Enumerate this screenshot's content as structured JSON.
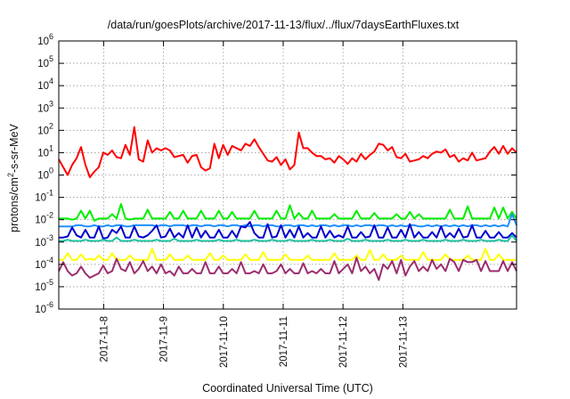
{
  "chart_data": {
    "type": "line",
    "title": "/data/run/goesPlots/archive/2017-11-13/flux/../flux/7daysEarthFluxes.txt",
    "xlabel": "Coordinated Universal Time (UTC)",
    "ylabel": "protons/cm²-s-sr-MeV",
    "yscale": "log",
    "ylim_exp": [
      -6,
      6
    ],
    "y_tick_exponents": [
      -6,
      -5,
      -4,
      -3,
      -2,
      -1,
      0,
      1,
      2,
      3,
      4,
      5,
      6
    ],
    "xlim_days": [
      -0.75,
      6.9
    ],
    "x_tick_labels": [
      "2017-11-8",
      "2017-11-9",
      "2017-11-10",
      "2017-11-11",
      "2017-11-12",
      "2017-11-13"
    ],
    "grid": true,
    "legend": "none",
    "series": [
      {
        "color": "#ff0000",
        "values_log10": [
          0.7,
          0.35,
          0.0,
          0.45,
          0.75,
          1.25,
          0.45,
          -0.1,
          0.15,
          0.35,
          1.0,
          0.9,
          1.1,
          0.8,
          0.75,
          1.35,
          0.9,
          2.15,
          0.7,
          0.6,
          1.55,
          1.0,
          1.2,
          1.1,
          1.2,
          1.1,
          0.8,
          0.85,
          0.9,
          0.55,
          0.85,
          0.9,
          0.35,
          0.2,
          0.3,
          1.4,
          0.75,
          1.35,
          0.9,
          1.3,
          1.2,
          1.1,
          1.4,
          1.3,
          1.6,
          1.25,
          0.95,
          0.65,
          0.6,
          0.8,
          0.45,
          0.7,
          0.25,
          0.45,
          1.9,
          1.2,
          1.2,
          1.0,
          0.85,
          0.85,
          0.7,
          0.75,
          0.55,
          0.85,
          0.7,
          0.5,
          0.75,
          0.6,
          0.95,
          0.7,
          0.9,
          1.05,
          1.4,
          1.35,
          1.1,
          1.25,
          0.8,
          0.75,
          0.95,
          0.6,
          0.65,
          0.7,
          0.85,
          0.75,
          0.95,
          1.05,
          1.0,
          1.15,
          0.8,
          0.9,
          0.6,
          0.75,
          0.65,
          1.0,
          0.65,
          0.7,
          0.75,
          1.05,
          1.25,
          0.95,
          1.3,
          0.95,
          1.2,
          1.0
        ]
      },
      {
        "color": "#00ee00",
        "values_log10": [
          -1.95,
          -1.95,
          -1.95,
          -2.0,
          -1.95,
          -1.6,
          -1.95,
          -1.6,
          -2.05,
          -1.95,
          -1.95,
          -1.95,
          -1.75,
          -1.95,
          -1.3,
          -1.95,
          -2.0,
          -1.95,
          -1.95,
          -1.95,
          -1.55,
          -1.95,
          -1.95,
          -1.95,
          -1.95,
          -1.65,
          -1.95,
          -1.95,
          -1.6,
          -1.95,
          -1.95,
          -1.95,
          -1.6,
          -1.95,
          -1.95,
          -1.95,
          -1.6,
          -1.95,
          -1.95,
          -1.65,
          -1.95,
          -1.95,
          -1.95,
          -1.95,
          -1.6,
          -1.95,
          -1.95,
          -1.95,
          -1.95,
          -1.6,
          -1.95,
          -1.95,
          -1.35,
          -1.95,
          -1.7,
          -1.95,
          -1.95,
          -1.6,
          -1.95,
          -1.95,
          -1.95,
          -1.95,
          -1.75,
          -1.95,
          -1.95,
          -1.95,
          -1.95,
          -1.6,
          -1.95,
          -1.95,
          -1.95,
          -1.7,
          -1.95,
          -1.95,
          -1.95,
          -1.95,
          -1.75,
          -1.95,
          -1.95,
          -1.65,
          -1.95,
          -1.75,
          -1.95,
          -1.95,
          -1.95,
          -1.95,
          -1.95,
          -1.95,
          -1.55,
          -1.95,
          -1.95,
          -1.95,
          -1.4,
          -1.95,
          -1.95,
          -1.95,
          -1.95,
          -1.95,
          -1.45,
          -1.95,
          -1.45,
          -1.95,
          -1.65,
          -1.95
        ]
      },
      {
        "color": "#1e90ff",
        "values_log10": [
          -2.3,
          -2.3,
          -2.3,
          -2.3,
          -2.25,
          -2.25,
          -2.3,
          -2.3,
          -2.25,
          -2.3,
          -2.3,
          -2.25,
          -2.3,
          -2.25,
          -2.25,
          -2.3,
          -2.3,
          -2.25,
          -2.25,
          -2.25,
          -2.25,
          -2.25,
          -2.3,
          -2.25,
          -2.25,
          -2.3,
          -2.25,
          -2.25,
          -2.25,
          -2.3,
          -2.25,
          -2.25,
          -2.3,
          -2.25,
          -2.25,
          -2.3,
          -2.25,
          -2.25,
          -2.3,
          -2.25,
          -2.25,
          -2.3,
          -2.25,
          -2.3,
          -2.25,
          -2.25,
          -2.3,
          -2.25,
          -2.25,
          -2.3,
          -2.3,
          -2.25,
          -2.25,
          -2.3,
          -2.25,
          -2.25,
          -2.3,
          -2.25,
          -2.3,
          -2.25,
          -2.25,
          -2.3,
          -2.25,
          -2.3,
          -2.25,
          -2.25,
          -2.3,
          -2.25,
          -2.3,
          -2.25,
          -2.25,
          -2.3,
          -2.25,
          -2.25,
          -2.3,
          -2.25,
          -2.3,
          -2.25,
          -2.3,
          -2.25,
          -2.25,
          -2.3,
          -2.3,
          -2.25,
          -2.3,
          -2.25,
          -2.3,
          -2.25,
          -2.3,
          -2.25,
          -2.3,
          -2.25,
          -2.3,
          -2.25,
          -2.25,
          -2.3,
          -2.25,
          -2.3,
          -2.25,
          -2.3,
          -2.25,
          -2.3,
          -1.75,
          -2.25
        ]
      },
      {
        "color": "#0000cd",
        "values_log10": [
          -2.8,
          -2.8,
          -2.75,
          -2.35,
          -2.7,
          -2.8,
          -2.45,
          -2.8,
          -2.8,
          -2.3,
          -2.85,
          -2.8,
          -2.45,
          -2.6,
          -2.3,
          -2.8,
          -2.8,
          -2.3,
          -2.75,
          -2.8,
          -2.7,
          -2.5,
          -2.25,
          -2.8,
          -2.75,
          -2.4,
          -2.8,
          -2.6,
          -2.8,
          -2.25,
          -2.8,
          -2.35,
          -2.8,
          -2.5,
          -2.8,
          -2.8,
          -2.45,
          -2.8,
          -2.8,
          -2.5,
          -2.8,
          -2.3,
          -2.35,
          -2.1,
          -2.6,
          -2.8,
          -2.8,
          -2.2,
          -2.8,
          -2.75,
          -2.25,
          -2.8,
          -2.45,
          -2.8,
          -2.3,
          -2.8,
          -2.6,
          -2.8,
          -2.8,
          -2.3,
          -2.8,
          -2.5,
          -2.8,
          -2.7,
          -2.8,
          -2.3,
          -2.8,
          -2.8,
          -2.55,
          -2.8,
          -2.75,
          -2.25,
          -2.8,
          -2.8,
          -2.35,
          -2.8,
          -2.8,
          -2.45,
          -2.8,
          -2.2,
          -2.8,
          -2.55,
          -2.8,
          -2.8,
          -2.55,
          -2.8,
          -2.3,
          -2.8,
          -2.6,
          -2.8,
          -2.4,
          -2.8,
          -2.75,
          -2.25,
          -2.8,
          -2.8,
          -2.5,
          -2.8,
          -2.8,
          -2.55,
          -2.8,
          -2.8,
          -2.6,
          -2.8
        ]
      },
      {
        "color": "#20c0a0",
        "values_log10": [
          -2.95,
          -2.95,
          -2.9,
          -2.95,
          -2.95,
          -2.95,
          -2.9,
          -2.95,
          -2.95,
          -2.95,
          -2.9,
          -2.95,
          -2.95,
          -2.8,
          -2.95,
          -2.95,
          -2.95,
          -2.9,
          -2.95,
          -2.95,
          -2.95,
          -2.95,
          -2.9,
          -2.95,
          -2.95,
          -2.95,
          -2.85,
          -2.95,
          -2.95,
          -2.95,
          -2.95,
          -2.9,
          -2.95,
          -2.95,
          -2.95,
          -2.95,
          -2.9,
          -2.95,
          -2.95,
          -2.95,
          -2.9,
          -2.95,
          -2.95,
          -2.95,
          -2.9,
          -2.95,
          -2.95,
          -2.95,
          -2.9,
          -2.95,
          -2.95,
          -2.95,
          -2.9,
          -2.95,
          -2.95,
          -2.95,
          -2.95,
          -2.9,
          -2.95,
          -2.95,
          -2.95,
          -2.9,
          -2.95,
          -2.95,
          -2.95,
          -2.85,
          -2.95,
          -2.95,
          -2.95,
          -2.9,
          -2.95,
          -2.95,
          -2.95,
          -2.95,
          -2.9,
          -2.95,
          -2.95,
          -2.95,
          -2.9,
          -2.95,
          -2.95,
          -2.95,
          -2.9,
          -2.95,
          -2.95,
          -2.95,
          -2.95,
          -2.9,
          -2.95,
          -2.95,
          -2.95,
          -2.9,
          -2.95,
          -2.95,
          -2.95,
          -2.9,
          -2.95,
          -2.95,
          -2.95,
          -2.9,
          -2.95,
          -2.95,
          -2.7,
          -2.95
        ]
      },
      {
        "color": "#ffff00",
        "values_log10": [
          -3.8,
          -3.8,
          -3.5,
          -3.8,
          -3.8,
          -3.55,
          -3.8,
          -3.75,
          -3.8,
          -3.6,
          -3.8,
          -3.8,
          -3.5,
          -3.8,
          -3.8,
          -3.8,
          -3.6,
          -3.8,
          -3.8,
          -3.8,
          -3.8,
          -3.3,
          -3.8,
          -3.8,
          -3.8,
          -3.55,
          -3.8,
          -3.8,
          -3.8,
          -3.6,
          -3.8,
          -3.8,
          -3.8,
          -3.8,
          -3.5,
          -3.8,
          -3.8,
          -3.6,
          -3.8,
          -3.8,
          -3.8,
          -3.8,
          -3.55,
          -3.8,
          -3.8,
          -3.8,
          -3.45,
          -3.8,
          -3.8,
          -3.8,
          -3.8,
          -3.55,
          -3.8,
          -3.8,
          -3.8,
          -3.8,
          -3.6,
          -3.8,
          -3.8,
          -3.8,
          -3.8,
          -3.8,
          -3.5,
          -3.8,
          -3.8,
          -3.8,
          -3.8,
          -3.6,
          -3.8,
          -3.8,
          -3.35,
          -3.8,
          -3.8,
          -3.55,
          -3.8,
          -3.8,
          -3.8,
          -3.6,
          -3.8,
          -3.8,
          -3.8,
          -3.8,
          -3.45,
          -3.8,
          -3.8,
          -3.8,
          -3.8,
          -3.55,
          -3.8,
          -3.8,
          -3.8,
          -3.8,
          -3.6,
          -3.8,
          -3.8,
          -3.8,
          -3.3,
          -3.8,
          -3.8,
          -3.55,
          -3.8,
          -3.8,
          -3.8,
          -3.8
        ]
      },
      {
        "color": "#9b2d6e",
        "values_log10": [
          -4.3,
          -3.9,
          -4.3,
          -4.5,
          -4.4,
          -4.1,
          -4.4,
          -4.6,
          -4.5,
          -4.4,
          -4.05,
          -4.4,
          -4.3,
          -3.75,
          -4.2,
          -4.3,
          -3.9,
          -4.4,
          -4.2,
          -3.85,
          -4.3,
          -4.1,
          -4.4,
          -4.0,
          -4.4,
          -4.3,
          -4.5,
          -4.1,
          -4.4,
          -4.4,
          -4.2,
          -4.4,
          -4.4,
          -3.9,
          -4.4,
          -4.4,
          -4.1,
          -4.4,
          -4.4,
          -4.2,
          -4.4,
          -3.9,
          -4.4,
          -4.4,
          -4.3,
          -4.4,
          -4.0,
          -4.4,
          -4.4,
          -4.3,
          -4.0,
          -4.4,
          -4.2,
          -4.4,
          -4.4,
          -3.95,
          -4.4,
          -4.3,
          -4.4,
          -4.2,
          -4.4,
          -4.4,
          -3.85,
          -4.4,
          -4.2,
          -4.0,
          -4.4,
          -3.7,
          -4.3,
          -4.1,
          -4.4,
          -4.2,
          -4.7,
          -4.0,
          -4.2,
          -3.85,
          -4.4,
          -3.8,
          -4.5,
          -4.1,
          -3.85,
          -4.3,
          -4.1,
          -4.3,
          -3.8,
          -4.2,
          -4.0,
          -4.3,
          -3.75,
          -3.9,
          -4.3,
          -3.8,
          -3.9,
          -3.9,
          -3.8,
          -4.3,
          -3.85,
          -4.3,
          -4.3,
          -4.3,
          -3.85,
          -4.3,
          -3.9,
          -4.3
        ]
      }
    ]
  }
}
